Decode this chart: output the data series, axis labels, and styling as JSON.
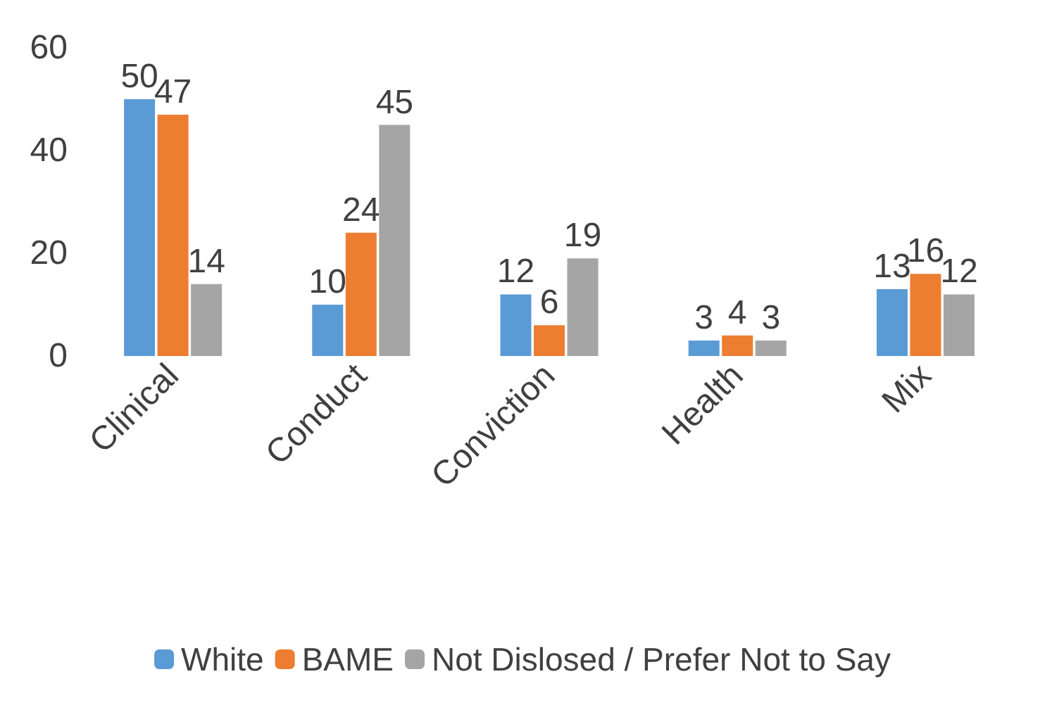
{
  "chart_data": {
    "type": "bar",
    "categories": [
      "Clinical",
      "Conduct",
      "Conviction",
      "Health",
      "Mix"
    ],
    "series": [
      {
        "name": "White",
        "color": "#5b9bd5",
        "values": [
          50,
          10,
          12,
          3,
          13
        ]
      },
      {
        "name": "BAME",
        "color": "#ed7d31",
        "values": [
          47,
          24,
          6,
          4,
          16
        ]
      },
      {
        "name": "Not Dislosed / Prefer Not to Say",
        "color": "#a5a5a5",
        "values": [
          14,
          45,
          19,
          3,
          12
        ]
      }
    ],
    "ylim": [
      0,
      60
    ],
    "yticks": [
      0,
      20,
      40,
      60
    ],
    "grid": false,
    "legend": "bottom",
    "data_labels": true
  }
}
